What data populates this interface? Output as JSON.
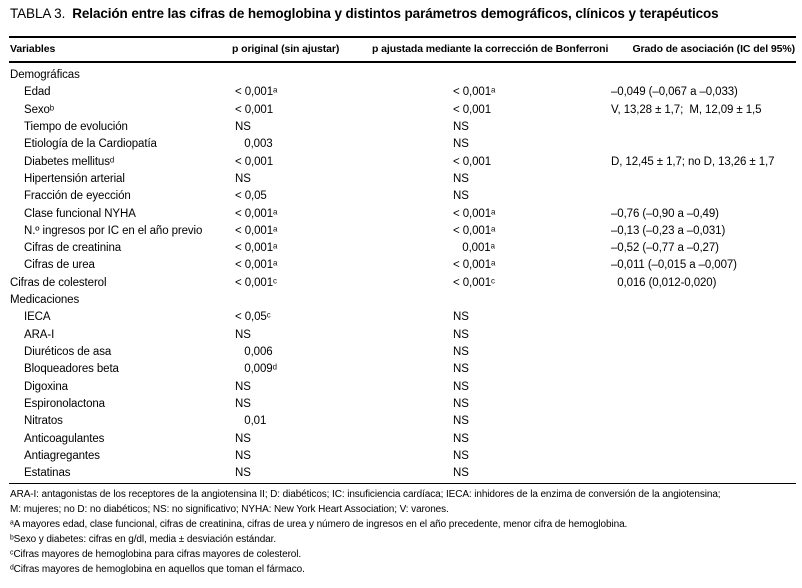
{
  "title": {
    "label": "TABLA 3.",
    "text": "Relación entre las cifras de hemoglobina y distintos parámetros demográficos, clínicos y terapéuticos"
  },
  "table": {
    "headers": {
      "variables": "Variables",
      "p_original": "p original (sin ajustar)",
      "p_adjusted": "p ajustada mediante la corrección de Bonferroni",
      "association": "Grado de asociación (IC del 95%)"
    },
    "rows": [
      {
        "label": "Demográficas",
        "indent": false,
        "p_original": "",
        "p_adjusted": "",
        "association": ""
      },
      {
        "label": "Edad",
        "indent": true,
        "p_original": "< 0,001ᵃ",
        "p_adjusted": "< 0,001ᵃ",
        "association": "–0,049 (–0,067 a –0,033)"
      },
      {
        "label": "Sexoᵇ",
        "indent": true,
        "p_original": "< 0,001",
        "p_adjusted": "< 0,001",
        "association": "V, 13,28 ± 1,7;  M, 12,09 ± 1,5"
      },
      {
        "label": "Tiempo de evolución",
        "indent": true,
        "p_original": "NS",
        "p_adjusted": "NS",
        "association": ""
      },
      {
        "label": "Etiología de la Cardiopatía",
        "indent": true,
        "p_original": "   0,003",
        "p_adjusted": "NS",
        "association": ""
      },
      {
        "label": "Diabetes mellitusᵈ",
        "indent": true,
        "p_original": "< 0,001",
        "p_adjusted": "< 0,001",
        "association": "D, 12,45 ± 1,7; no D, 13,26 ± 1,7"
      },
      {
        "label": "Hipertensión arterial",
        "indent": true,
        "p_original": "NS",
        "p_adjusted": "NS",
        "association": ""
      },
      {
        "label": "Fracción de eyección",
        "indent": true,
        "p_original": "< 0,05",
        "p_adjusted": "NS",
        "association": ""
      },
      {
        "label": "Clase funcional NYHA",
        "indent": true,
        "p_original": "< 0,001ᵃ",
        "p_adjusted": "< 0,001ᵃ",
        "association": "–0,76 (–0,90 a –0,49)"
      },
      {
        "label": "N.º ingresos por IC en el año previo",
        "indent": true,
        "p_original": "< 0,001ᵃ",
        "p_adjusted": "< 0,001ᵃ",
        "association": "–0,13 (–0,23 a –0,031)"
      },
      {
        "label": "Cifras de creatinina",
        "indent": true,
        "p_original": "< 0,001ᵃ",
        "p_adjusted": "   0,001ᵃ",
        "association": "–0,52 (–0,77 a –0,27)"
      },
      {
        "label": "Cifras de urea",
        "indent": true,
        "p_original": "< 0,001ᵃ",
        "p_adjusted": "< 0,001ᵃ",
        "association": "–0,011 (–0,015 a –0,007)"
      },
      {
        "label": "Cifras de colesterol",
        "indent": false,
        "p_original": "< 0,001ᶜ",
        "p_adjusted": "< 0,001ᶜ",
        "association": "  0,016 (0,012-0,020)"
      },
      {
        "label": "Medicaciones",
        "indent": false,
        "p_original": "",
        "p_adjusted": "",
        "association": ""
      },
      {
        "label": "IECA",
        "indent": true,
        "p_original": "< 0,05ᶜ",
        "p_adjusted": "NS",
        "association": ""
      },
      {
        "label": "ARA-I",
        "indent": true,
        "p_original": "NS",
        "p_adjusted": "NS",
        "association": ""
      },
      {
        "label": "Diuréticos de asa",
        "indent": true,
        "p_original": "   0,006",
        "p_adjusted": "NS",
        "association": ""
      },
      {
        "label": "Bloqueadores beta",
        "indent": true,
        "p_original": "   0,009ᵈ",
        "p_adjusted": "NS",
        "association": ""
      },
      {
        "label": "Digoxina",
        "indent": true,
        "p_original": "NS",
        "p_adjusted": "NS",
        "association": ""
      },
      {
        "label": "Espironolactona",
        "indent": true,
        "p_original": "NS",
        "p_adjusted": "NS",
        "association": ""
      },
      {
        "label": "Nitratos",
        "indent": true,
        "p_original": "   0,01",
        "p_adjusted": "NS",
        "association": ""
      },
      {
        "label": "Anticoagulantes",
        "indent": true,
        "p_original": "NS",
        "p_adjusted": "NS",
        "association": ""
      },
      {
        "label": "Antiagregantes",
        "indent": true,
        "p_original": "NS",
        "p_adjusted": "NS",
        "association": ""
      },
      {
        "label": "Estatinas",
        "indent": true,
        "p_original": "NS",
        "p_adjusted": "NS",
        "association": ""
      }
    ]
  },
  "footnotes": {
    "lines": [
      "ARA-I: antagonistas de los receptores de la angiotensina II; D: diabéticos; IC: insuficiencia cardíaca; IECA: inhidores de la enzima de conversión de la angiotensina;",
      "M: mujeres; no D: no diabéticos; NS: no significativo; NYHA: New York Heart Association; V: varones.",
      "ᵃA mayores edad, clase funcional, cifras de creatinina, cifras de urea y número de ingresos en el año precedente, menor cifra de hemoglobina.",
      "ᵇSexo y diabetes: cifras en g/dl, media ± desviación estándar.",
      "ᶜCifras mayores de hemoglobina para cifras mayores de colesterol.",
      "ᵈCifras mayores de hemoglobina en aquellos que toman el fármaco."
    ]
  },
  "colors": {
    "text": "#000000",
    "background": "#ffffff",
    "rule": "#000000"
  }
}
